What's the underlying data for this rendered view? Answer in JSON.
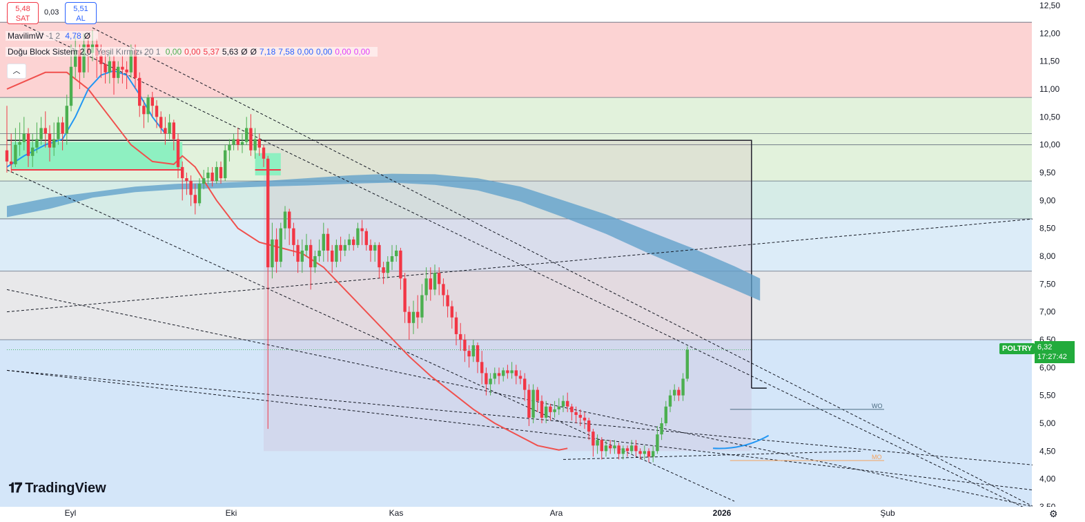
{
  "header": {
    "sell_price": "5,48",
    "sell_label": "SAT",
    "spread": "0,03",
    "buy_price": "5,51",
    "buy_label": "AL"
  },
  "indicators": [
    {
      "name": "MavilimW",
      "params": "1 2",
      "values": [
        {
          "text": "4,78",
          "color": "#2962ff"
        },
        {
          "text": "Ø",
          "color": "#131722"
        }
      ]
    },
    {
      "name": "Doğu Block Sistem 2.0",
      "params": "Yeşil Kırmızı 20 1",
      "values": [
        {
          "text": "0,00",
          "color": "#4caf50"
        },
        {
          "text": "0,00",
          "color": "#f23645"
        },
        {
          "text": "5,37",
          "color": "#f23645"
        },
        {
          "text": "5,63",
          "color": "#131722"
        },
        {
          "text": "Ø",
          "color": "#131722"
        },
        {
          "text": "Ø",
          "color": "#131722"
        },
        {
          "text": "7,18",
          "color": "#2962ff"
        },
        {
          "text": "7,58",
          "color": "#2962ff"
        },
        {
          "text": "0,00",
          "color": "#2962ff"
        },
        {
          "text": "0,00",
          "color": "#2962ff"
        },
        {
          "text": "0,00",
          "color": "#e040fb"
        },
        {
          "text": "0,00",
          "color": "#e040fb"
        }
      ]
    }
  ],
  "collapse_icon": "chevron-up-icon",
  "brand": "TradingView",
  "symbol_label": "POLTRY",
  "last_price": "6,32",
  "countdown": "17:27:42",
  "colors": {
    "up": "#4caf50",
    "down": "#f23645",
    "last_price_bg": "#22ab3c",
    "ma_red": "#f0504d",
    "mavilim_blue": "#2196f3",
    "cloud": "#5b9ec9"
  },
  "chart_data": {
    "type": "candlestick",
    "ylim": [
      3.5,
      12.5
    ],
    "y_ticks": [
      "12,50",
      "12,00",
      "11,50",
      "11,00",
      "10,50",
      "10,00",
      "9,50",
      "9,00",
      "8,50",
      "8,00",
      "7,50",
      "7,00",
      "6,50",
      "6,00",
      "5,50",
      "5,00",
      "4,50",
      "4,00",
      "3,50"
    ],
    "x_labels": [
      "Eyl",
      "Eki",
      "Kas",
      "Ara",
      "2026",
      "Şub"
    ],
    "zones": [
      {
        "from": 10.85,
        "to": 12.2,
        "color": "#fcd3d3"
      },
      {
        "from": 9.35,
        "to": 10.85,
        "color": "#e2f2dc"
      },
      {
        "from": 8.67,
        "to": 9.35,
        "color": "#d6ece7"
      },
      {
        "from": 7.73,
        "to": 8.67,
        "color": "#dcecf8"
      },
      {
        "from": 6.5,
        "to": 7.73,
        "color": "#e8e8ea"
      },
      {
        "from": 3.5,
        "to": 6.5,
        "color": "#d4e6f9"
      }
    ],
    "level_lines": [
      12.2,
      10.85,
      10.2,
      10.0,
      9.35,
      8.67,
      7.73,
      6.5
    ],
    "annotations": [
      {
        "text": "WO",
        "price": 5.25
      },
      {
        "text": "MO",
        "price": 4.33
      }
    ],
    "candles": [
      [
        9.9,
        9.7,
        10.7,
        9.5
      ],
      [
        9.7,
        9.65,
        10.2,
        9.5
      ],
      [
        9.65,
        10.0,
        10.3,
        9.6
      ],
      [
        10.0,
        10.05,
        10.4,
        9.8
      ],
      [
        10.05,
        10.2,
        10.5,
        9.9
      ],
      [
        10.2,
        9.8,
        10.3,
        9.6
      ],
      [
        9.8,
        9.95,
        10.2,
        9.6
      ],
      [
        9.95,
        10.1,
        10.4,
        9.85
      ],
      [
        10.1,
        10.3,
        10.5,
        10.0
      ],
      [
        10.3,
        10.2,
        10.6,
        9.95
      ],
      [
        10.2,
        9.95,
        10.35,
        9.7
      ],
      [
        9.95,
        10.1,
        10.4,
        9.8
      ],
      [
        10.1,
        10.4,
        10.5,
        10.0
      ],
      [
        10.4,
        10.2,
        10.5,
        9.9
      ],
      [
        10.2,
        10.7,
        10.9,
        10.0
      ],
      [
        10.7,
        11.4,
        11.8,
        10.6
      ],
      [
        11.4,
        11.7,
        11.95,
        11.2
      ],
      [
        11.7,
        11.3,
        11.8,
        11.0
      ],
      [
        11.3,
        11.8,
        12.0,
        11.2
      ],
      [
        11.8,
        11.65,
        11.95,
        11.3
      ],
      [
        11.65,
        11.8,
        12.05,
        11.5
      ],
      [
        11.8,
        11.6,
        11.9,
        11.2
      ],
      [
        11.6,
        11.45,
        11.8,
        11.2
      ],
      [
        11.45,
        11.3,
        11.7,
        11.1
      ],
      [
        11.3,
        11.5,
        11.7,
        11.1
      ],
      [
        11.5,
        11.2,
        11.6,
        10.9
      ],
      [
        11.2,
        11.4,
        11.5,
        11.1
      ],
      [
        11.4,
        11.35,
        11.6,
        11.1
      ],
      [
        11.35,
        11.3,
        11.5,
        11.0
      ],
      [
        11.3,
        11.7,
        11.8,
        11.2
      ],
      [
        11.7,
        11.2,
        11.8,
        11.0
      ],
      [
        11.2,
        10.7,
        11.3,
        10.5
      ],
      [
        10.7,
        10.55,
        10.8,
        10.3
      ],
      [
        10.55,
        10.85,
        10.9,
        10.4
      ],
      [
        10.85,
        10.7,
        10.95,
        10.5
      ],
      [
        10.7,
        10.5,
        10.8,
        10.3
      ],
      [
        10.5,
        10.3,
        10.6,
        10.2
      ],
      [
        10.3,
        10.2,
        10.5,
        10.0
      ],
      [
        10.2,
        10.4,
        10.55,
        10.1
      ],
      [
        10.4,
        10.1,
        10.45,
        9.9
      ],
      [
        10.1,
        9.6,
        10.2,
        9.4
      ],
      [
        9.6,
        9.4,
        9.7,
        9.0
      ],
      [
        9.4,
        9.35,
        9.5,
        9.1
      ],
      [
        9.35,
        9.1,
        9.45,
        8.9
      ],
      [
        9.1,
        8.95,
        9.3,
        8.75
      ],
      [
        8.95,
        9.3,
        9.4,
        8.9
      ],
      [
        9.3,
        9.4,
        9.55,
        9.2
      ],
      [
        9.4,
        9.5,
        9.6,
        9.3
      ],
      [
        9.5,
        9.35,
        9.6,
        9.25
      ],
      [
        9.35,
        9.6,
        9.7,
        9.3
      ],
      [
        9.6,
        9.4,
        9.7,
        9.3
      ],
      [
        9.4,
        9.9,
        10.0,
        9.35
      ],
      [
        9.9,
        10.0,
        10.1,
        9.7
      ],
      [
        10.0,
        10.1,
        10.2,
        9.9
      ],
      [
        10.1,
        10.0,
        10.3,
        9.9
      ],
      [
        10.0,
        10.05,
        10.2,
        9.85
      ],
      [
        10.05,
        10.3,
        10.5,
        10.0
      ],
      [
        10.3,
        9.9,
        10.55,
        9.8
      ],
      [
        9.9,
        10.1,
        10.3,
        9.75
      ],
      [
        10.1,
        9.95,
        10.2,
        9.8
      ],
      [
        9.95,
        9.75,
        10.0,
        9.6
      ],
      [
        9.75,
        7.8,
        9.8,
        4.9
      ],
      [
        7.8,
        8.3,
        8.6,
        7.6
      ],
      [
        8.3,
        7.9,
        8.5,
        7.7
      ],
      [
        7.9,
        8.5,
        8.6,
        7.8
      ],
      [
        8.5,
        8.8,
        8.9,
        8.3
      ],
      [
        8.8,
        8.5,
        8.85,
        8.2
      ],
      [
        8.5,
        8.2,
        8.6,
        8.0
      ],
      [
        8.2,
        7.9,
        8.3,
        7.7
      ],
      [
        7.9,
        8.1,
        8.3,
        7.7
      ],
      [
        8.1,
        8.2,
        8.4,
        8.0
      ],
      [
        8.2,
        7.8,
        8.3,
        7.4
      ],
      [
        7.8,
        8.0,
        8.1,
        7.7
      ],
      [
        8.0,
        8.1,
        8.3,
        7.9
      ],
      [
        8.1,
        8.4,
        8.6,
        7.9
      ],
      [
        8.4,
        8.1,
        8.5,
        7.9
      ],
      [
        8.1,
        7.9,
        8.2,
        7.7
      ],
      [
        7.9,
        8.2,
        8.3,
        7.8
      ],
      [
        8.2,
        8.1,
        8.35,
        7.9
      ],
      [
        8.1,
        8.2,
        8.3,
        8.0
      ],
      [
        8.2,
        8.3,
        8.4,
        8.1
      ],
      [
        8.3,
        8.2,
        8.35,
        8.1
      ],
      [
        8.2,
        8.5,
        8.6,
        8.15
      ],
      [
        8.5,
        8.45,
        8.65,
        8.2
      ],
      [
        8.45,
        8.2,
        8.5,
        8.1
      ],
      [
        8.2,
        8.1,
        8.3,
        7.9
      ],
      [
        8.1,
        8.2,
        8.25,
        7.9
      ],
      [
        8.2,
        7.8,
        8.25,
        7.6
      ],
      [
        7.8,
        7.7,
        7.9,
        7.5
      ],
      [
        7.7,
        7.9,
        8.0,
        7.6
      ],
      [
        7.9,
        8.0,
        8.2,
        7.75
      ],
      [
        8.0,
        8.1,
        8.2,
        7.9
      ],
      [
        8.1,
        7.6,
        8.15,
        7.4
      ],
      [
        7.6,
        7.0,
        7.7,
        6.8
      ],
      [
        7.0,
        6.8,
        7.1,
        6.5
      ],
      [
        6.8,
        7.0,
        7.2,
        6.6
      ],
      [
        7.0,
        6.9,
        7.3,
        6.7
      ],
      [
        6.9,
        7.3,
        7.5,
        6.8
      ],
      [
        7.3,
        7.6,
        7.8,
        7.2
      ],
      [
        7.6,
        7.4,
        7.8,
        7.2
      ],
      [
        7.4,
        7.7,
        7.85,
        7.3
      ],
      [
        7.7,
        7.5,
        7.8,
        7.3
      ],
      [
        7.5,
        7.3,
        7.6,
        7.1
      ],
      [
        7.3,
        7.1,
        7.4,
        6.9
      ],
      [
        7.1,
        6.9,
        7.2,
        6.7
      ],
      [
        6.9,
        6.6,
        7.0,
        6.4
      ],
      [
        6.6,
        6.5,
        6.8,
        6.3
      ],
      [
        6.5,
        6.3,
        6.6,
        6.1
      ],
      [
        6.3,
        6.2,
        6.4,
        6.0
      ],
      [
        6.2,
        6.4,
        6.5,
        6.1
      ],
      [
        6.4,
        6.1,
        6.45,
        5.9
      ],
      [
        6.1,
        5.9,
        6.3,
        5.7
      ],
      [
        5.9,
        5.7,
        6.0,
        5.5
      ],
      [
        5.7,
        5.8,
        5.9,
        5.5
      ],
      [
        5.8,
        5.9,
        6.0,
        5.7
      ],
      [
        5.9,
        5.85,
        6.0,
        5.7
      ],
      [
        5.85,
        5.95,
        6.0,
        5.75
      ],
      [
        5.95,
        5.9,
        6.05,
        5.8
      ],
      [
        5.9,
        5.95,
        6.1,
        5.8
      ],
      [
        5.95,
        5.85,
        6.05,
        5.7
      ],
      [
        5.85,
        5.8,
        5.95,
        5.7
      ],
      [
        5.8,
        5.6,
        5.9,
        5.4
      ],
      [
        5.6,
        5.1,
        5.7,
        4.95
      ],
      [
        5.1,
        5.6,
        5.7,
        5.0
      ],
      [
        5.6,
        5.4,
        5.65,
        5.2
      ],
      [
        5.4,
        5.1,
        5.5,
        5.0
      ],
      [
        5.1,
        5.3,
        5.4,
        5.0
      ],
      [
        5.3,
        5.2,
        5.35,
        5.05
      ],
      [
        5.2,
        5.25,
        5.4,
        5.1
      ],
      [
        5.25,
        5.3,
        5.45,
        5.15
      ],
      [
        5.3,
        5.4,
        5.5,
        5.2
      ],
      [
        5.4,
        5.3,
        5.55,
        5.2
      ],
      [
        5.3,
        5.2,
        5.35,
        5.05
      ],
      [
        5.2,
        5.15,
        5.3,
        5.0
      ],
      [
        5.15,
        5.1,
        5.25,
        4.95
      ],
      [
        5.1,
        5.05,
        5.2,
        4.9
      ],
      [
        5.05,
        4.85,
        5.1,
        4.7
      ],
      [
        4.85,
        4.6,
        4.9,
        4.4
      ],
      [
        4.6,
        4.7,
        4.8,
        4.45
      ],
      [
        4.7,
        4.5,
        4.75,
        4.35
      ],
      [
        4.5,
        4.6,
        4.7,
        4.4
      ],
      [
        4.6,
        4.55,
        4.7,
        4.45
      ],
      [
        4.55,
        4.6,
        4.7,
        4.45
      ],
      [
        4.6,
        4.45,
        4.65,
        4.35
      ],
      [
        4.45,
        4.55,
        4.6,
        4.35
      ],
      [
        4.55,
        4.5,
        4.6,
        4.4
      ],
      [
        4.5,
        4.6,
        4.7,
        4.45
      ],
      [
        4.6,
        4.5,
        4.7,
        4.4
      ],
      [
        4.5,
        4.45,
        4.55,
        4.35
      ],
      [
        4.45,
        4.5,
        4.6,
        4.35
      ],
      [
        4.5,
        4.4,
        4.55,
        4.3
      ],
      [
        4.4,
        4.5,
        4.6,
        4.3
      ],
      [
        4.5,
        4.8,
        4.95,
        4.45
      ],
      [
        4.8,
        5.0,
        5.1,
        4.7
      ],
      [
        5.0,
        5.3,
        5.4,
        4.95
      ],
      [
        5.3,
        5.5,
        5.6,
        5.2
      ],
      [
        5.5,
        5.6,
        5.7,
        5.4
      ],
      [
        5.6,
        5.5,
        5.65,
        5.4
      ],
      [
        5.5,
        5.8,
        5.9,
        5.4
      ],
      [
        5.8,
        6.32,
        6.38,
        5.75
      ]
    ],
    "red_ma": [
      [
        0,
        11.0
      ],
      [
        9,
        11.3
      ],
      [
        14,
        11.3
      ],
      [
        19,
        11.0
      ],
      [
        24,
        10.5
      ],
      [
        29,
        10.0
      ],
      [
        34,
        9.7
      ],
      [
        39,
        9.65
      ],
      [
        41,
        9.8
      ],
      [
        44,
        9.6
      ],
      [
        49,
        9.0
      ],
      [
        54,
        8.5
      ],
      [
        59,
        8.25
      ],
      [
        64,
        8.15
      ],
      [
        69,
        8.05
      ],
      [
        74,
        7.8
      ],
      [
        79,
        7.4
      ],
      [
        84,
        7.0
      ],
      [
        89,
        6.6
      ],
      [
        94,
        6.2
      ],
      [
        99,
        5.85
      ],
      [
        104,
        5.55
      ],
      [
        109,
        5.25
      ],
      [
        114,
        5.0
      ],
      [
        119,
        4.8
      ],
      [
        124,
        4.6
      ],
      [
        129,
        4.52
      ],
      [
        131,
        4.55
      ]
    ],
    "blue_mavilim": [
      [
        0,
        9.6
      ],
      [
        4,
        9.8
      ],
      [
        9,
        10.0
      ],
      [
        13,
        10.1
      ],
      [
        16,
        10.5
      ],
      [
        19,
        11.0
      ],
      [
        22,
        11.25
      ],
      [
        25,
        11.33
      ],
      [
        28,
        11.25
      ],
      [
        31,
        10.9
      ],
      [
        34,
        10.5
      ],
      [
        37,
        10.2
      ]
    ]
  }
}
